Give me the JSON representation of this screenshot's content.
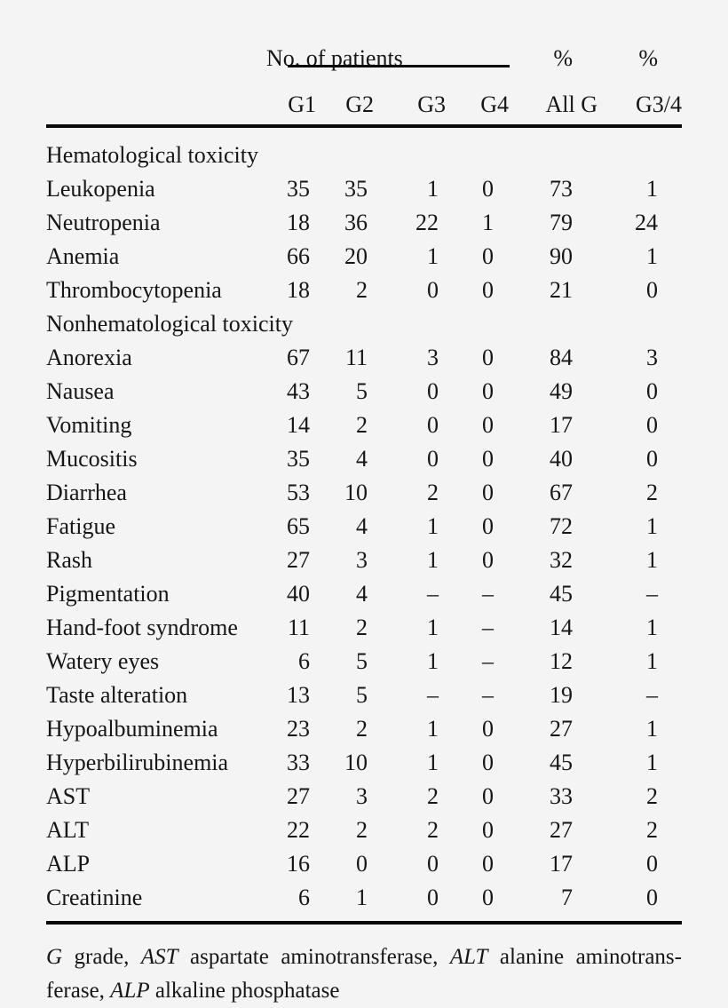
{
  "page": {
    "background": "#f4f4f4",
    "text_color": "#161616",
    "rule_color": "#0a0a0a"
  },
  "table": {
    "header": {
      "group_label": "No. of patients",
      "pct_labels": [
        "%",
        "%"
      ],
      "columns": [
        "G1",
        "G2",
        "G3",
        "G4",
        "All G",
        "G3/4"
      ]
    },
    "sections": [
      {
        "title": "Hematological toxicity",
        "rows": [
          {
            "label": "Leukopenia",
            "values": [
              "35",
              "35",
              "1",
              "0",
              "73",
              "1"
            ]
          },
          {
            "label": "Neutropenia",
            "values": [
              "18",
              "36",
              "22",
              "1",
              "79",
              "24"
            ]
          },
          {
            "label": "Anemia",
            "values": [
              "66",
              "20",
              "1",
              "0",
              "90",
              "1"
            ]
          },
          {
            "label": "Thrombocytopenia",
            "values": [
              "18",
              "2",
              "0",
              "0",
              "21",
              "0"
            ]
          }
        ]
      },
      {
        "title": "Nonhematological toxicity",
        "rows": [
          {
            "label": "Anorexia",
            "values": [
              "67",
              "11",
              "3",
              "0",
              "84",
              "3"
            ]
          },
          {
            "label": "Nausea",
            "values": [
              "43",
              "5",
              "0",
              "0",
              "49",
              "0"
            ]
          },
          {
            "label": "Vomiting",
            "values": [
              "14",
              "2",
              "0",
              "0",
              "17",
              "0"
            ]
          },
          {
            "label": "Mucositis",
            "values": [
              "35",
              "4",
              "0",
              "0",
              "40",
              "0"
            ]
          },
          {
            "label": "Diarrhea",
            "values": [
              "53",
              "10",
              "2",
              "0",
              "67",
              "2"
            ]
          },
          {
            "label": "Fatigue",
            "values": [
              "65",
              "4",
              "1",
              "0",
              "72",
              "1"
            ]
          },
          {
            "label": "Rash",
            "values": [
              "27",
              "3",
              "1",
              "0",
              "32",
              "1"
            ]
          },
          {
            "label": "Pigmentation",
            "values": [
              "40",
              "4",
              "–",
              "–",
              "45",
              "–"
            ]
          },
          {
            "label": "Hand-foot syndrome",
            "values": [
              "11",
              "2",
              "1",
              "–",
              "14",
              "1"
            ]
          },
          {
            "label": "Watery eyes",
            "values": [
              "6",
              "5",
              "1",
              "–",
              "12",
              "1"
            ]
          },
          {
            "label": "Taste alteration",
            "values": [
              "13",
              "5",
              "–",
              "–",
              "19",
              "–"
            ]
          },
          {
            "label": "Hypoalbuminemia",
            "values": [
              "23",
              "2",
              "1",
              "0",
              "27",
              "1"
            ]
          },
          {
            "label": "Hyperbilirubinemia",
            "values": [
              "33",
              "10",
              "1",
              "0",
              "45",
              "1"
            ]
          },
          {
            "label": "AST",
            "values": [
              "27",
              "3",
              "2",
              "0",
              "33",
              "2"
            ]
          },
          {
            "label": "ALT",
            "values": [
              "22",
              "2",
              "2",
              "0",
              "27",
              "2"
            ]
          },
          {
            "label": "ALP",
            "values": [
              "16",
              "0",
              "0",
              "0",
              "17",
              "0"
            ]
          },
          {
            "label": "Creatinine",
            "values": [
              "6",
              "1",
              "0",
              "0",
              "7",
              "0"
            ]
          }
        ]
      }
    ],
    "footnote": {
      "line1": [
        {
          "text": "G",
          "italic": true
        },
        {
          "text": " grade, ",
          "italic": false
        },
        {
          "text": "AST",
          "italic": true
        },
        {
          "text": " aspartate aminotransferase, ",
          "italic": false
        },
        {
          "text": "ALT",
          "italic": true
        },
        {
          "text": " alanine aminotrans-",
          "italic": false
        }
      ],
      "line2": [
        {
          "text": "ferase, ",
          "italic": false
        },
        {
          "text": "ALP",
          "italic": true
        },
        {
          "text": " alkaline phosphatase",
          "italic": false
        }
      ]
    }
  }
}
